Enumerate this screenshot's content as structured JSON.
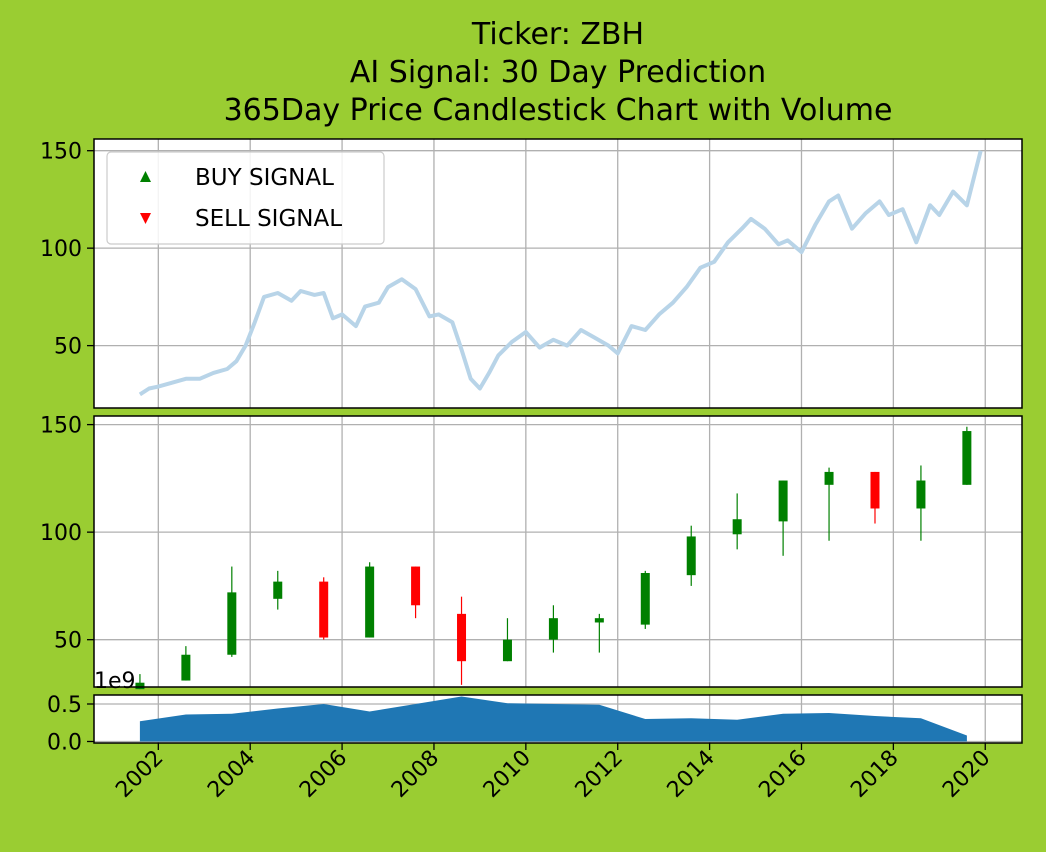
{
  "chart_data": {
    "type": "candlestick",
    "title_lines": [
      "Ticker: ZBH",
      "AI Signal: 30 Day Prediction",
      "365Day Price Candlestick Chart with Volume"
    ],
    "background_color": "#9acd32",
    "grid": true,
    "x_axis": {
      "ticks": [
        "2002",
        "2004",
        "2006",
        "2008",
        "2010",
        "2012",
        "2014",
        "2016",
        "2018",
        "2020"
      ],
      "range": [
        2000.6,
        2020.8
      ],
      "tick_rotation_deg": 45
    },
    "price_panel": {
      "type": "line",
      "line_color": "#b8d4e8",
      "yticks": [
        "50",
        "100",
        "150"
      ],
      "ylim": [
        18,
        156
      ],
      "legend": {
        "placement": "top-left",
        "entries": [
          {
            "label": "BUY SIGNAL",
            "marker": "triangle-up",
            "color": "#008000"
          },
          {
            "label": "SELL SIGNAL",
            "marker": "triangle-down",
            "color": "#ff0000"
          }
        ]
      },
      "series": [
        {
          "x": [
            2001.6,
            2001.8,
            2002.0,
            2002.3,
            2002.6,
            2002.9,
            2003.2,
            2003.5,
            2003.7,
            2003.9,
            2004.1,
            2004.3,
            2004.6,
            2004.9,
            2005.1,
            2005.4,
            2005.6,
            2005.8,
            2006.0,
            2006.3,
            2006.5,
            2006.8,
            2007.0,
            2007.3,
            2007.6,
            2007.9,
            2008.1,
            2008.4,
            2008.6,
            2008.8,
            2009.0,
            2009.2,
            2009.4,
            2009.7,
            2010.0,
            2010.3,
            2010.6,
            2010.9,
            2011.2,
            2011.5,
            2011.8,
            2012.0,
            2012.3,
            2012.6,
            2012.9,
            2013.2,
            2013.5,
            2013.8,
            2014.1,
            2014.4,
            2014.7,
            2014.9,
            2015.2,
            2015.5,
            2015.7,
            2016.0,
            2016.3,
            2016.6,
            2016.8,
            2017.1,
            2017.4,
            2017.7,
            2017.9,
            2018.2,
            2018.5,
            2018.8,
            2019.0,
            2019.3,
            2019.6,
            2019.9
          ],
          "y": [
            25,
            28,
            29,
            31,
            33,
            33,
            36,
            38,
            42,
            50,
            62,
            75,
            77,
            73,
            78,
            76,
            77,
            64,
            66,
            60,
            70,
            72,
            80,
            84,
            79,
            65,
            66,
            62,
            48,
            33,
            28,
            36,
            45,
            52,
            57,
            49,
            53,
            50,
            58,
            54,
            50,
            46,
            60,
            58,
            66,
            72,
            80,
            90,
            93,
            103,
            110,
            115,
            110,
            102,
            104,
            98,
            112,
            124,
            127,
            110,
            118,
            124,
            117,
            120,
            103,
            122,
            117,
            129,
            122,
            150
          ]
        }
      ]
    },
    "candle_panel": {
      "yticks": [
        "50",
        "100",
        "150"
      ],
      "ylim": [
        28,
        154
      ],
      "up_color": "#008000",
      "down_color": "#ff0000",
      "candles": [
        {
          "x": 2001.6,
          "open": 27,
          "close": 30,
          "high": 34,
          "low": 27,
          "dir": "up"
        },
        {
          "x": 2002.6,
          "open": 31,
          "close": 43,
          "high": 47,
          "low": 31,
          "dir": "up"
        },
        {
          "x": 2003.6,
          "open": 43,
          "close": 72,
          "high": 84,
          "low": 42,
          "dir": "up"
        },
        {
          "x": 2004.6,
          "open": 69,
          "close": 77,
          "high": 82,
          "low": 64,
          "dir": "up"
        },
        {
          "x": 2005.6,
          "open": 77,
          "close": 51,
          "high": 79,
          "low": 50,
          "dir": "down"
        },
        {
          "x": 2006.6,
          "open": 51,
          "close": 84,
          "high": 86,
          "low": 51,
          "dir": "up"
        },
        {
          "x": 2007.6,
          "open": 84,
          "close": 66,
          "high": 84,
          "low": 60,
          "dir": "down"
        },
        {
          "x": 2008.6,
          "open": 62,
          "close": 40,
          "high": 70,
          "low": 29,
          "dir": "down"
        },
        {
          "x": 2009.6,
          "open": 40,
          "close": 50,
          "high": 60,
          "low": 40,
          "dir": "up"
        },
        {
          "x": 2010.6,
          "open": 50,
          "close": 60,
          "high": 66,
          "low": 44,
          "dir": "up"
        },
        {
          "x": 2011.6,
          "open": 58,
          "close": 60,
          "high": 62,
          "low": 44,
          "dir": "up"
        },
        {
          "x": 2012.6,
          "open": 57,
          "close": 81,
          "high": 82,
          "low": 55,
          "dir": "up"
        },
        {
          "x": 2013.6,
          "open": 80,
          "close": 98,
          "high": 103,
          "low": 75,
          "dir": "up"
        },
        {
          "x": 2014.6,
          "open": 99,
          "close": 106,
          "high": 118,
          "low": 92,
          "dir": "up"
        },
        {
          "x": 2015.6,
          "open": 105,
          "close": 124,
          "high": 124,
          "low": 89,
          "dir": "up"
        },
        {
          "x": 2016.6,
          "open": 122,
          "close": 128,
          "high": 130,
          "low": 96,
          "dir": "up"
        },
        {
          "x": 2017.6,
          "open": 128,
          "close": 111,
          "high": 128,
          "low": 104,
          "dir": "down"
        },
        {
          "x": 2018.6,
          "open": 111,
          "close": 124,
          "high": 131,
          "low": 96,
          "dir": "up"
        },
        {
          "x": 2019.6,
          "open": 122,
          "close": 147,
          "high": 149,
          "low": 122,
          "dir": "up"
        }
      ]
    },
    "volume_panel": {
      "type": "area",
      "color": "#1f77b4",
      "scale_label": "1e9",
      "yticks": [
        "0.0",
        "0.5"
      ],
      "ylim": [
        -0.02,
        0.62
      ],
      "x": [
        2001.6,
        2002.6,
        2003.6,
        2004.6,
        2005.6,
        2006.6,
        2007.6,
        2008.6,
        2009.6,
        2010.6,
        2011.6,
        2012.6,
        2013.6,
        2014.6,
        2015.6,
        2016.6,
        2017.6,
        2018.6,
        2019.6
      ],
      "values": [
        0.27,
        0.36,
        0.37,
        0.44,
        0.5,
        0.4,
        0.5,
        0.6,
        0.51,
        0.5,
        0.49,
        0.3,
        0.31,
        0.29,
        0.37,
        0.38,
        0.34,
        0.31,
        0.08
      ]
    }
  }
}
